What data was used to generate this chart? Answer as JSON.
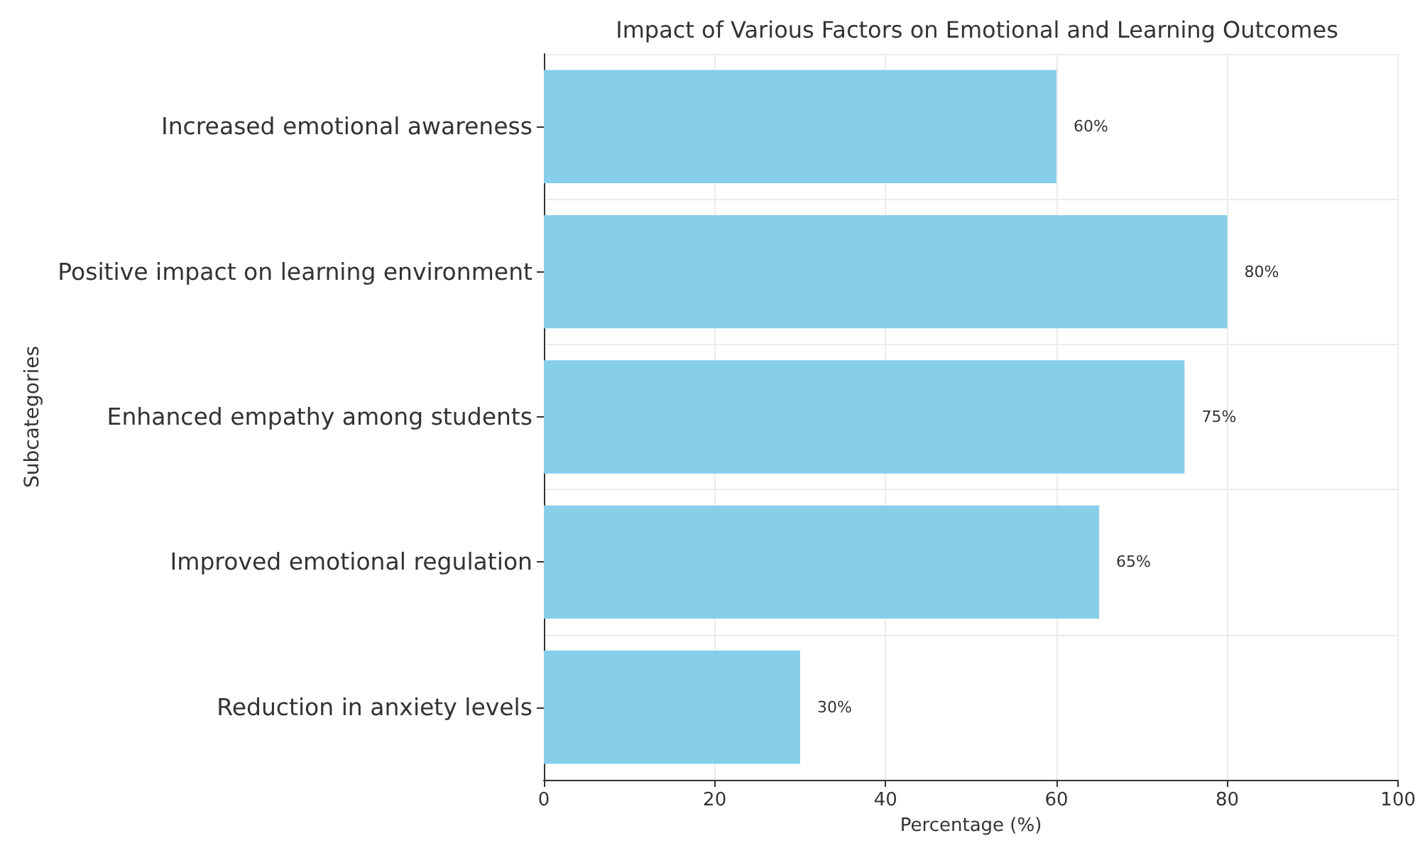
{
  "chart_data": {
    "type": "bar",
    "orientation": "horizontal",
    "title": "Impact of Various Factors on Emotional and Learning Outcomes",
    "xlabel": "Percentage (%)",
    "ylabel": "Subcategories",
    "categories": [
      "Increased emotional awareness",
      "Positive impact on learning environment",
      "Enhanced empathy among students",
      "Improved emotional regulation",
      "Reduction in anxiety levels"
    ],
    "values": [
      60,
      80,
      75,
      65,
      30
    ],
    "value_labels": [
      "60%",
      "80%",
      "75%",
      "65%",
      "30%"
    ],
    "color": "#87ceeb",
    "xlim": [
      0,
      100
    ],
    "xticks": [
      0,
      20,
      40,
      60,
      80,
      100
    ],
    "grid": true
  }
}
